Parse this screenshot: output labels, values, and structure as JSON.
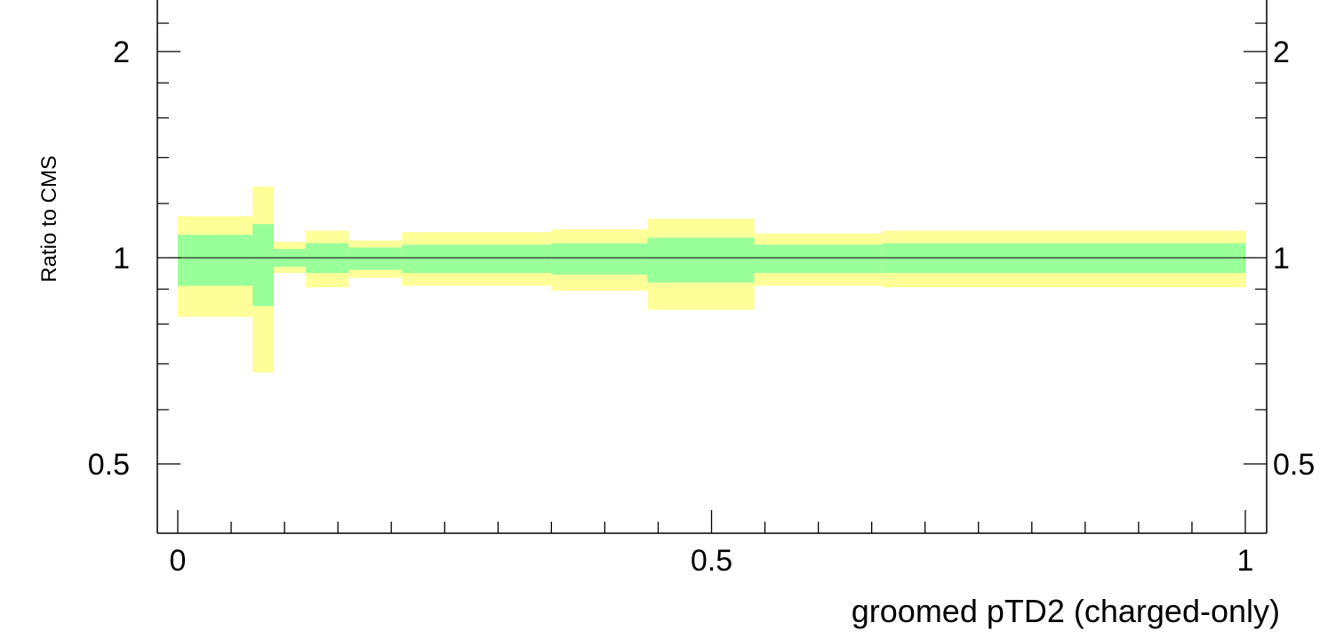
{
  "chart_data": {
    "type": "area",
    "title": "",
    "xlabel": "groomed pTD2 (charged-only)",
    "ylabel": "Ratio to CMS",
    "xlim": [
      -0.02,
      1.02
    ],
    "ylim": [
      0.4,
      2.35
    ],
    "y_scale": "log",
    "grid": false,
    "x_ticks": [
      {
        "value": 0,
        "label": "0"
      },
      {
        "value": 0.5,
        "label": "0.5"
      },
      {
        "value": 1,
        "label": "1"
      }
    ],
    "y_ticks": [
      {
        "value": 0.5,
        "label": "0.5"
      },
      {
        "value": 1,
        "label": "1"
      },
      {
        "value": 2,
        "label": "2"
      }
    ],
    "reference_line": 1,
    "colors": {
      "inner_band": "#99ff99",
      "outer_band": "#ffff99",
      "axis": "#000000"
    },
    "series": [
      {
        "x_edges": [
          0.0,
          0.07,
          0.09,
          0.12,
          0.16,
          0.21,
          0.35,
          0.44,
          0.54,
          0.66,
          1.0
        ],
        "inner_low": [
          0.91,
          0.85,
          0.97,
          0.95,
          0.96,
          0.95,
          0.945,
          0.92,
          0.95,
          0.95
        ],
        "inner_high": [
          1.08,
          1.12,
          1.03,
          1.05,
          1.035,
          1.045,
          1.05,
          1.07,
          1.045,
          1.05
        ],
        "outer_low": [
          0.82,
          0.68,
          0.95,
          0.905,
          0.935,
          0.91,
          0.895,
          0.84,
          0.91,
          0.905
        ],
        "outer_high": [
          1.15,
          1.27,
          1.055,
          1.095,
          1.06,
          1.09,
          1.1,
          1.14,
          1.085,
          1.095
        ]
      }
    ]
  }
}
